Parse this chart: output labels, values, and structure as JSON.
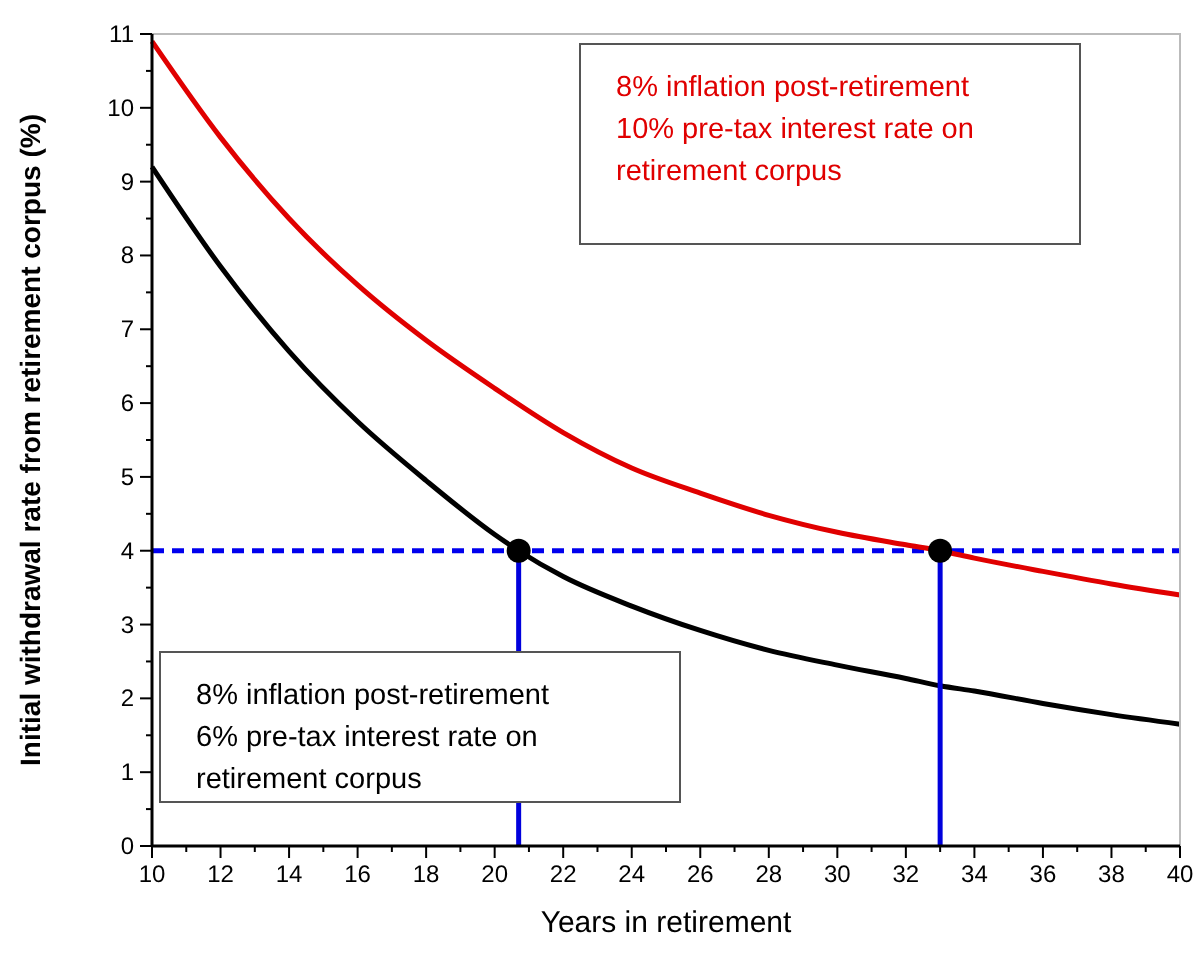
{
  "chart_data": {
    "type": "line",
    "xlabel": "Years in retirement",
    "ylabel": "Initial withdrawal rate from retirement corpus (%)",
    "xlim": [
      10,
      40
    ],
    "xticks": [
      10,
      12,
      14,
      16,
      18,
      20,
      22,
      24,
      26,
      28,
      30,
      32,
      34,
      36,
      38,
      40
    ],
    "ylim": [
      0,
      11
    ],
    "yticks": [
      0,
      1,
      2,
      3,
      4,
      5,
      6,
      7,
      8,
      9,
      10,
      11
    ],
    "grid": false,
    "marker": "none",
    "line_style": "solid",
    "series": [
      {
        "color": "#000000",
        "x": [
          10,
          12,
          14,
          16,
          18,
          20,
          20.7,
          22,
          24,
          26,
          28,
          30,
          32,
          33,
          34,
          36,
          38,
          40
        ],
        "values": [
          9.2,
          7.85,
          6.7,
          5.75,
          4.95,
          4.22,
          4.0,
          3.65,
          3.25,
          2.92,
          2.65,
          2.45,
          2.27,
          2.17,
          2.1,
          1.93,
          1.78,
          1.65
        ]
      },
      {
        "color": "#e00000",
        "x": [
          10,
          12,
          14,
          16,
          18,
          20,
          22,
          24,
          26,
          28,
          30,
          32,
          33,
          34,
          36,
          38,
          40
        ],
        "values": [
          10.9,
          9.6,
          8.5,
          7.6,
          6.85,
          6.2,
          5.6,
          5.12,
          4.78,
          4.48,
          4.25,
          4.08,
          4.0,
          3.9,
          3.72,
          3.55,
          3.4
        ]
      },
      {
        "type": "line",
        "color": "#0000dd",
        "x": [
          20.7,
          20.7
        ],
        "values": [
          0,
          4
        ]
      },
      {
        "type": "line",
        "color": "#0000dd",
        "x": [
          33,
          33
        ],
        "values": [
          0,
          4
        ]
      },
      {
        "type": "scatter",
        "marker": "circle",
        "color": "#000000",
        "x": [
          20.7,
          33
        ],
        "values": [
          4,
          4
        ]
      }
    ],
    "ref_lines": [
      {
        "axis": "y",
        "value": 4,
        "color": "#0000ee",
        "line_style": "dashed"
      }
    ],
    "annotations": [
      "8% inflation post-retirement\n6% pre-tax interest rate on\nretirement corpus",
      "8% inflation post-retirement\n10% pre-tax interest rate on\nretirement corpus"
    ]
  }
}
